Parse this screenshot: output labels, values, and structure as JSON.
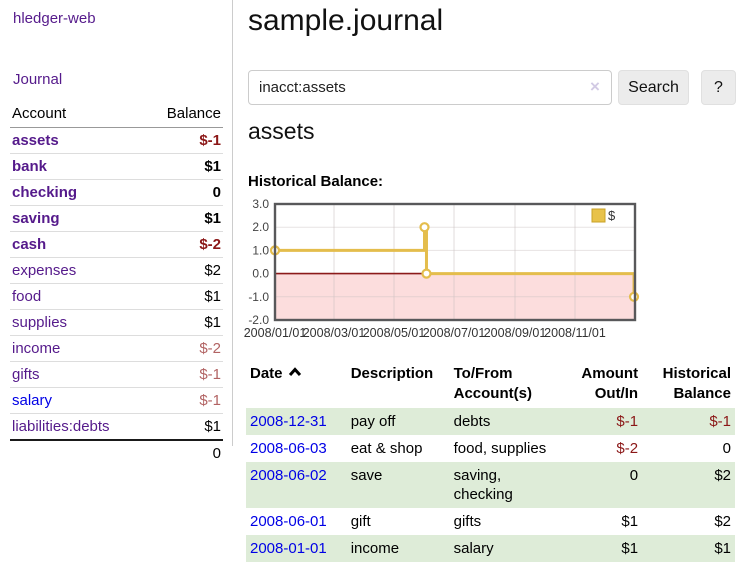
{
  "brand": "hledger-web",
  "nav": {
    "journal_label": "Journal"
  },
  "sidebar": {
    "header": {
      "account": "Account",
      "balance": "Balance"
    },
    "accounts": [
      {
        "name": "assets",
        "balance": "$-1",
        "depth": 1,
        "bold": true,
        "link_color": "purple",
        "balance_class": "neg-strong"
      },
      {
        "name": "bank",
        "balance": "$1",
        "depth": 2,
        "bold": true,
        "link_color": "purple",
        "balance_class": "pos"
      },
      {
        "name": "checking",
        "balance": "0",
        "depth": 3,
        "bold": true,
        "link_color": "purple",
        "balance_class": "pos"
      },
      {
        "name": "saving",
        "balance": "$1",
        "depth": 3,
        "bold": true,
        "link_color": "purple",
        "balance_class": "pos"
      },
      {
        "name": "cash",
        "balance": "$-2",
        "depth": 2,
        "bold": true,
        "link_color": "purple",
        "balance_class": "neg-strong"
      },
      {
        "name": "expenses",
        "balance": "$2",
        "depth": 1,
        "bold": false,
        "link_color": "purple",
        "balance_class": "pos"
      },
      {
        "name": "food",
        "balance": "$1",
        "depth": 2,
        "bold": false,
        "link_color": "purple",
        "balance_class": "pos"
      },
      {
        "name": "supplies",
        "balance": "$1",
        "depth": 2,
        "bold": false,
        "link_color": "purple",
        "balance_class": "pos"
      },
      {
        "name": "income",
        "balance": "$-2",
        "depth": 1,
        "bold": false,
        "link_color": "purple",
        "balance_class": "neg-soft"
      },
      {
        "name": "gifts",
        "balance": "$-1",
        "depth": 2,
        "bold": false,
        "link_color": "purple",
        "balance_class": "neg-soft"
      },
      {
        "name": "salary",
        "balance": "$-1",
        "depth": 2,
        "bold": false,
        "link_color": "blue",
        "balance_class": "neg-soft"
      },
      {
        "name": "liabilities:debts",
        "balance": "$1",
        "depth": 1,
        "bold": false,
        "link_color": "purple",
        "balance_class": "pos"
      }
    ],
    "total": "0"
  },
  "header": {
    "title": "sample.journal"
  },
  "search": {
    "value": "inacct:assets",
    "clear_icon": "×",
    "button_label": "Search",
    "help_label": "?"
  },
  "account_page": {
    "heading": "assets",
    "chart_label": "Historical Balance:"
  },
  "chart_data": {
    "type": "line",
    "title": "Historical Balance",
    "legend": [
      {
        "label": "$",
        "color": "#e8c24a"
      }
    ],
    "legend_position": "top-right",
    "grid": true,
    "ylim": [
      -2,
      3
    ],
    "y_ticks": [
      3.0,
      2.0,
      1.0,
      0.0,
      -1.0,
      -2.0
    ],
    "x_total_days": 366,
    "x_ticks": [
      {
        "day": 0,
        "label": "2008/01/01"
      },
      {
        "day": 60,
        "label": "2008/03/01"
      },
      {
        "day": 121,
        "label": "2008/05/01"
      },
      {
        "day": 182,
        "label": "2008/07/01"
      },
      {
        "day": 244,
        "label": "2008/09/01"
      },
      {
        "day": 305,
        "label": "2008/11/01"
      }
    ],
    "series": [
      {
        "name": "$",
        "step": true,
        "points": [
          {
            "date": "2008-01-01",
            "day": 0,
            "value": 1
          },
          {
            "date": "2008-06-01",
            "day": 152,
            "value": 2
          },
          {
            "date": "2008-06-03",
            "day": 154,
            "value": 0
          },
          {
            "date": "2008-12-31",
            "day": 365,
            "value": -1
          }
        ]
      }
    ],
    "colors": {
      "line": "#e4bd4c",
      "marker_fill": "#ffffff",
      "negative_fill": "#fcdddd",
      "zero_line": "#8c1a1a",
      "border": "#58585a",
      "grid": "#c9c0c0"
    }
  },
  "register": {
    "headers": {
      "date": "Date",
      "description": "Description",
      "account_line1": "To/From",
      "account_line2": "Account(s)",
      "amount_line1": "Amount",
      "amount_line2": "Out/In",
      "balance_line1": "Historical",
      "balance_line2": "Balance"
    },
    "sort_icon": "chevron-up",
    "rows": [
      {
        "date": "2008-12-31",
        "description": "pay off",
        "accounts": "debts",
        "amount": "$-1",
        "amount_negative": true,
        "balance": "$-1",
        "balance_negative": true
      },
      {
        "date": "2008-06-03",
        "description": "eat & shop",
        "accounts": "food, supplies",
        "amount": "$-2",
        "amount_negative": true,
        "balance": "0",
        "balance_negative": false
      },
      {
        "date": "2008-06-02",
        "description": "save",
        "accounts": "saving,\nchecking",
        "amount": "0",
        "amount_negative": false,
        "balance": "$2",
        "balance_negative": false
      },
      {
        "date": "2008-06-01",
        "description": "gift",
        "accounts": "gifts",
        "amount": "$1",
        "amount_negative": false,
        "balance": "$2",
        "balance_negative": false
      },
      {
        "date": "2008-01-01",
        "description": "income",
        "accounts": "salary",
        "amount": "$1",
        "amount_negative": false,
        "balance": "$1",
        "balance_negative": false
      }
    ]
  }
}
